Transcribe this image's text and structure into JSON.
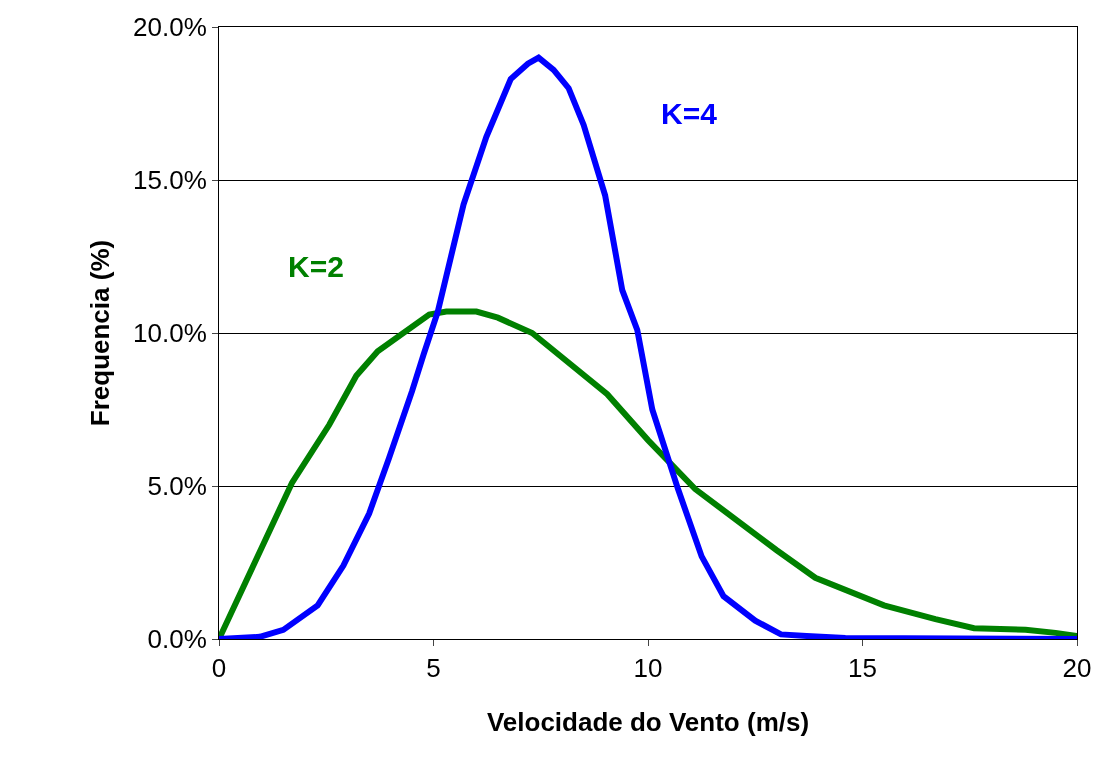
{
  "chart_data": {
    "type": "line",
    "xlabel": "Velocidade do Vento (m/s)",
    "ylabel": "Frequencia (%)",
    "xlim": [
      0,
      20
    ],
    "xticks": [
      0,
      5,
      10,
      15,
      20
    ],
    "ylim": [
      0,
      20
    ],
    "yticks": [
      {
        "value": 0,
        "label": "0.0%"
      },
      {
        "value": 5,
        "label": "5.0%"
      },
      {
        "value": 10,
        "label": "10.0%"
      },
      {
        "value": 15,
        "label": "15.0%"
      },
      {
        "value": 20,
        "label": "20.0%"
      }
    ],
    "grid": "y",
    "legend": false,
    "marker": "none",
    "line_style": "solid",
    "series": [
      {
        "name": "K=2",
        "color": "#008000",
        "x": [
          0,
          1.0,
          1.7,
          2.57,
          3.2,
          3.7,
          4.9,
          5.3,
          6.0,
          6.5,
          7.3,
          9.05,
          10,
          11.1,
          13.0,
          13.9,
          15.5,
          16.7,
          17.6,
          18.8,
          19.5,
          20
        ],
        "values": [
          0,
          3.0,
          5.1,
          7.0,
          8.6,
          9.4,
          10.6,
          10.7,
          10.7,
          10.5,
          10.0,
          8.0,
          6.5,
          4.9,
          2.9,
          2.0,
          1.1,
          0.65,
          0.35,
          0.3,
          0.2,
          0.1
        ]
      },
      {
        "name": "K=4",
        "color": "#0000ff",
        "x": [
          0,
          0.95,
          1.5,
          2.3,
          2.9,
          3.5,
          3.96,
          4.5,
          4.77,
          5.1,
          5.7,
          6.23,
          6.8,
          7.2,
          7.45,
          7.8,
          8.15,
          8.5,
          9.0,
          9.4,
          9.75,
          10.1,
          10.7,
          11.25,
          11.76,
          12.5,
          13.1,
          13.7,
          14.6,
          20
        ],
        "values": [
          0,
          0.07,
          0.3,
          1.1,
          2.4,
          4.1,
          5.9,
          8.1,
          9.3,
          10.7,
          14.2,
          16.4,
          18.3,
          18.8,
          19.0,
          18.6,
          18.0,
          16.8,
          14.5,
          11.4,
          10.1,
          7.5,
          4.9,
          2.7,
          1.4,
          0.6,
          0.15,
          0.1,
          0.03,
          0.0
        ]
      }
    ]
  }
}
